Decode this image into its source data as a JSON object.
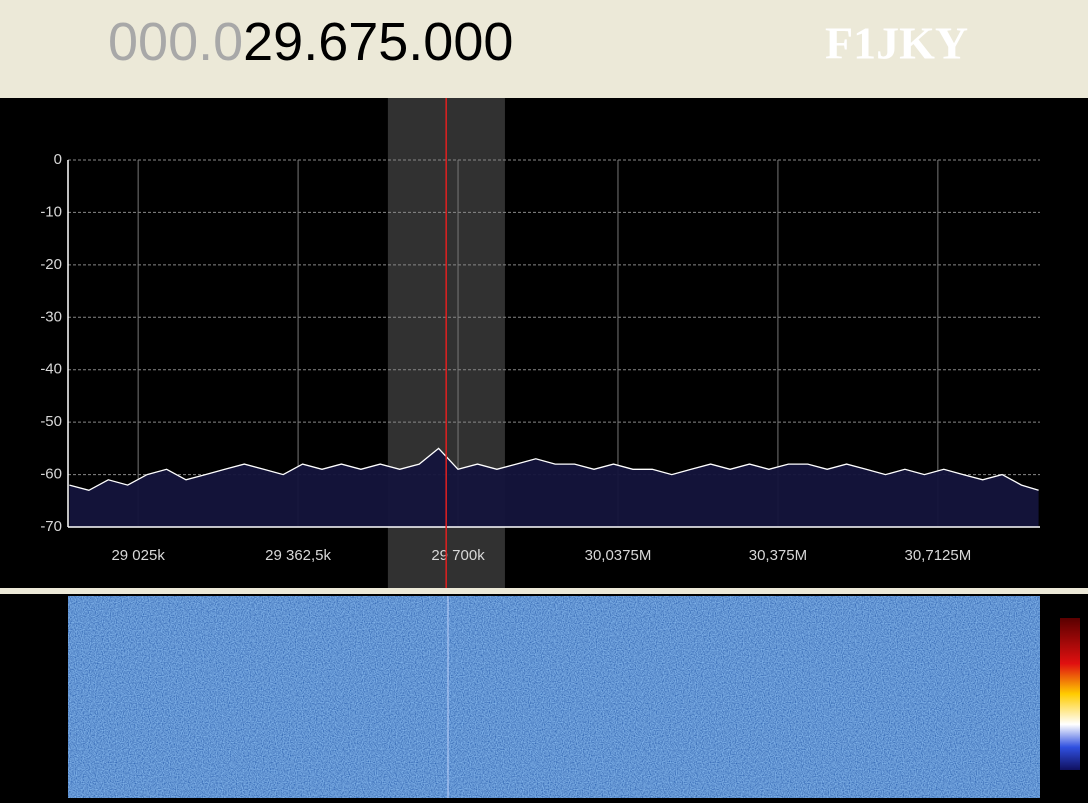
{
  "header": {
    "frequency_dim": "000.0",
    "frequency_main": "29.675.000",
    "callsign": "F1JKY"
  },
  "chart_data": {
    "type": "line",
    "x": [
      28880,
      28921,
      28962,
      29003,
      29044,
      29085,
      29126,
      29167,
      29208,
      29249,
      29290,
      29331,
      29372,
      29413,
      29454,
      29495,
      29536,
      29577,
      29618,
      29659,
      29700,
      29741,
      29782,
      29823,
      29864,
      29905,
      29946,
      29987,
      30028,
      30069,
      30110,
      30151,
      30192,
      30233,
      30274,
      30315,
      30356,
      30397,
      30438,
      30479,
      30520,
      30561,
      30602,
      30643,
      30684,
      30725,
      30766,
      30807,
      30848,
      30889,
      30925
    ],
    "series": [
      {
        "color": "#ffffff",
        "values": [
          -62,
          -63,
          -61,
          -62,
          -60,
          -59,
          -61,
          -60,
          -59,
          -58,
          -59,
          -60,
          -58,
          -59,
          -58,
          -59,
          -58,
          -59,
          -58,
          -55,
          -59,
          -58,
          -59,
          -58,
          -57,
          -58,
          -58,
          -59,
          -58,
          -59,
          -59,
          -60,
          -59,
          -58,
          -59,
          -58,
          -59,
          -58,
          -58,
          -59,
          -58,
          -59,
          -60,
          -59,
          -60,
          -59,
          -60,
          -61,
          -60,
          -62,
          -63
        ]
      }
    ],
    "xlim": [
      28877,
      30928
    ],
    "xticks": [
      {
        "value": 29025,
        "label": "29 025k"
      },
      {
        "value": 29362.5,
        "label": "29 362,5k"
      },
      {
        "value": 29700,
        "label": "29 700k"
      },
      {
        "value": 30037.5,
        "label": "30,0375M"
      },
      {
        "value": 30375,
        "label": "30,375M"
      },
      {
        "value": 30712.5,
        "label": "30,7125M"
      }
    ],
    "ylim": [
      -70,
      0
    ],
    "yticks": [
      0,
      -10,
      -20,
      -30,
      -40,
      -50,
      -60,
      -70
    ],
    "grid": true,
    "tuned_frequency": 29675,
    "passband": [
      29552,
      29799
    ]
  }
}
